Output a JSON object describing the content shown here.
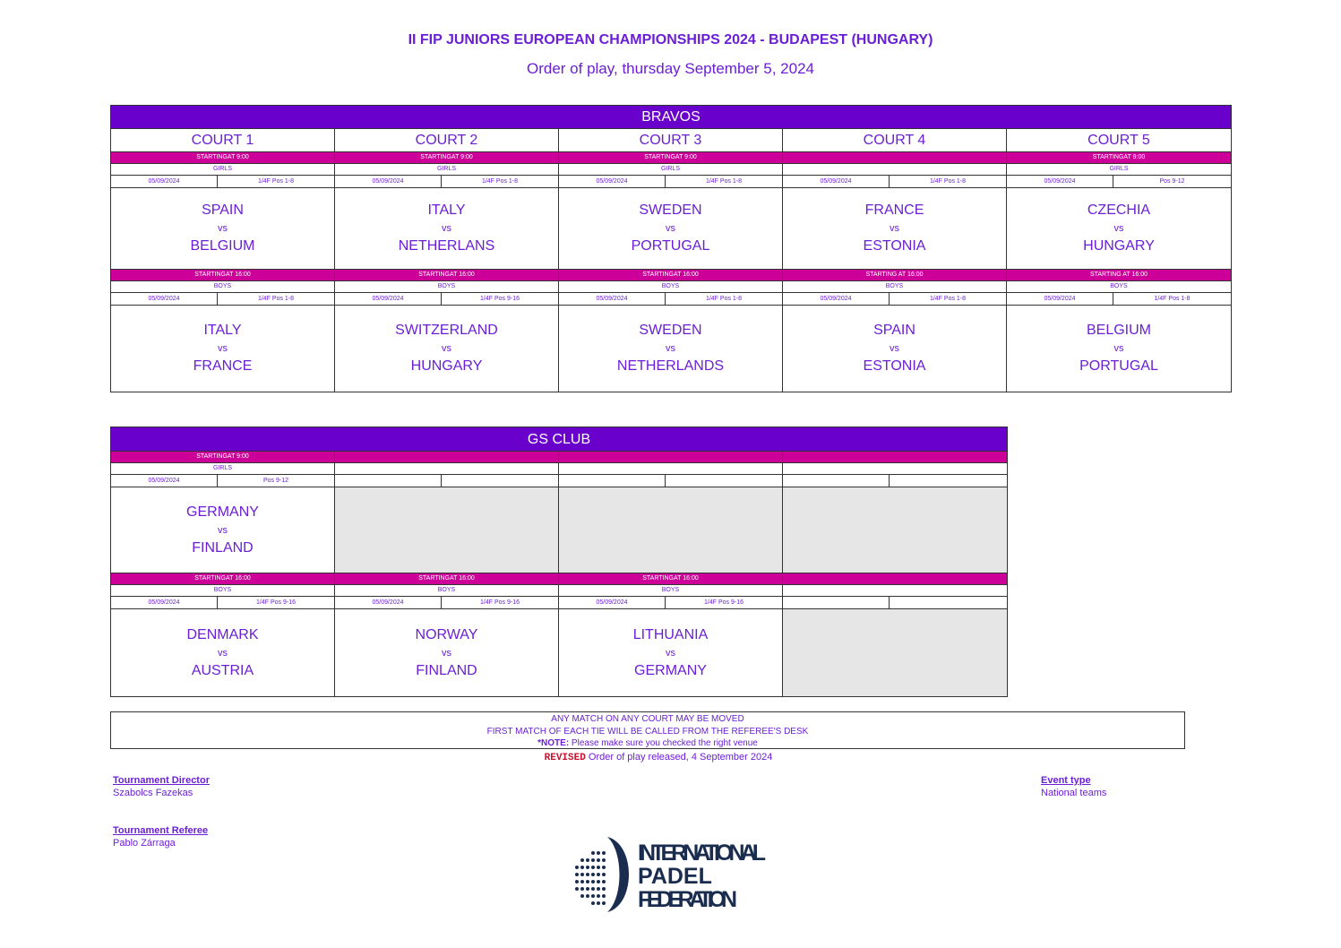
{
  "title": "II FIP JUNIORS EUROPEAN CHAMPIONSHIPS 2024 - BUDAPEST (HUNGARY)",
  "subtitle": "Order of play, thursday September 5, 2024",
  "colors": {
    "venue_header": "#6a00cc",
    "session_bar": "#cc0099",
    "text": "#6a1fd6",
    "empty_cell": "#e6e6e6"
  },
  "venues": [
    {
      "name": "BRAVOS",
      "columns": [
        {
          "court": "COURT 1",
          "sessions": [
            {
              "start": "STARTINGAT 9:00",
              "category": "GIRLS",
              "date": "05/09/2024",
              "round": "1/4F Pos 1-8",
              "team1": "SPAIN",
              "vs": "vs",
              "team2": "BELGIUM"
            },
            {
              "start": "STARTINGAT 16:00",
              "category": "BOYS",
              "date": "05/09/2024",
              "round": "1/4F Pos 1-8",
              "team1": "ITALY",
              "vs": "vs",
              "team2": "FRANCE"
            }
          ]
        },
        {
          "court": "COURT 2",
          "sessions": [
            {
              "start": "STARTINGAT 9:00",
              "category": "GIRLS",
              "date": "05/09/2024",
              "round": "1/4F Pos 1-8",
              "team1": "ITALY",
              "vs": "vs",
              "team2": "NETHERLANS"
            },
            {
              "start": "STARTINGAT 16:00",
              "category": "BOYS",
              "date": "05/09/2024",
              "round": "1/4F Pos 9-16",
              "team1": "SWITZERLAND",
              "vs": "vs",
              "team2": "HUNGARY"
            }
          ]
        },
        {
          "court": "COURT 3",
          "sessions": [
            {
              "start": "STARTINGAT 9:00",
              "category": "GIRLS",
              "date": "05/09/2024",
              "round": "1/4F Pos 1-8",
              "team1": "SWEDEN",
              "vs": "vs",
              "team2": "PORTUGAL"
            },
            {
              "start": "STARTINGAT 16:00",
              "category": "BOYS",
              "date": "05/09/2024",
              "round": "1/4F Pos 1-8",
              "team1": "SWEDEN",
              "vs": "vs",
              "team2": "NETHERLANDS"
            }
          ]
        },
        {
          "court": "COURT 4",
          "sessions": [
            {
              "start": "",
              "category": "",
              "date": "05/09/2024",
              "round": "1/4F Pos 1-8",
              "team1": "FRANCE",
              "vs": "vs",
              "team2": "ESTONIA"
            },
            {
              "start": "STARTING AT 16:00",
              "category": "BOYS",
              "date": "05/09/2024",
              "round": "1/4F Pos 1-8",
              "team1": "SPAIN",
              "vs": "vs",
              "team2": "ESTONIA"
            }
          ]
        },
        {
          "court": "COURT 5",
          "sessions": [
            {
              "start": "STARTINGAT 9:00",
              "category": "GIRLS",
              "date": "05/09/2024",
              "round": "Pos 9-12",
              "team1": "CZECHIA",
              "vs": "vs",
              "team2": "HUNGARY"
            },
            {
              "start": "STARTING AT 16:00",
              "category": "BOYS",
              "date": "05/09/2024",
              "round": "1/4F Pos 1-8",
              "team1": "BELGIUM",
              "vs": "vs",
              "team2": "PORTUGAL"
            }
          ]
        }
      ]
    },
    {
      "name": "GS CLUB",
      "columns": [
        {
          "sessions": [
            {
              "start": "STARTINGAT 9:00",
              "category": "GIRLS",
              "date": "05/09/2024",
              "round": "Pos 9-12",
              "team1": "GERMANY",
              "vs": "vs",
              "team2": "FINLAND"
            },
            {
              "start": "STARTINGAT 16:00",
              "category": "BOYS",
              "date": "05/09/2024",
              "round": "1/4F Pos 9-16",
              "team1": "DENMARK",
              "vs": "vs",
              "team2": "AUSTRIA"
            }
          ]
        },
        {
          "sessions": [
            {
              "empty": true
            },
            {
              "start": "STARTINGAT 16:00",
              "category": "BOYS",
              "date": "05/09/2024",
              "round": "1/4F Pos 9-16",
              "team1": "NORWAY",
              "vs": "vs",
              "team2": "FINLAND"
            }
          ]
        },
        {
          "sessions": [
            {
              "empty": true
            },
            {
              "start": "STARTINGAT 16:00",
              "category": "BOYS",
              "date": "05/09/2024",
              "round": "1/4F Pos 9-16",
              "team1": "LITHUANIA",
              "vs": "vs",
              "team2": "GERMANY"
            }
          ]
        },
        {
          "sessions": [
            {
              "empty": true
            },
            {
              "empty": true
            }
          ]
        }
      ]
    }
  ],
  "notes": {
    "line1": "ANY MATCH ON ANY COURT MAY BE MOVED",
    "line2": "FIRST MATCH OF EACH TIE WILL BE CALLED FROM THE REFEREE'S DESK",
    "note_label": "*NOTE:",
    "note_text": " Please make sure you checked the right venue"
  },
  "released": {
    "badge": "REVISED",
    "text": " Order of play released, 4 September 2024"
  },
  "staff": {
    "director_label": "Tournament Director",
    "director": "Szabolcs Fazekas",
    "referee_label": "Tournament Referee",
    "referee": "Pablo Zárraga",
    "event_label": "Event type",
    "event": "National teams"
  },
  "logo": {
    "line1": "INTERNATIONAL",
    "line2": "PADEL",
    "line3": "FEDERATION"
  }
}
